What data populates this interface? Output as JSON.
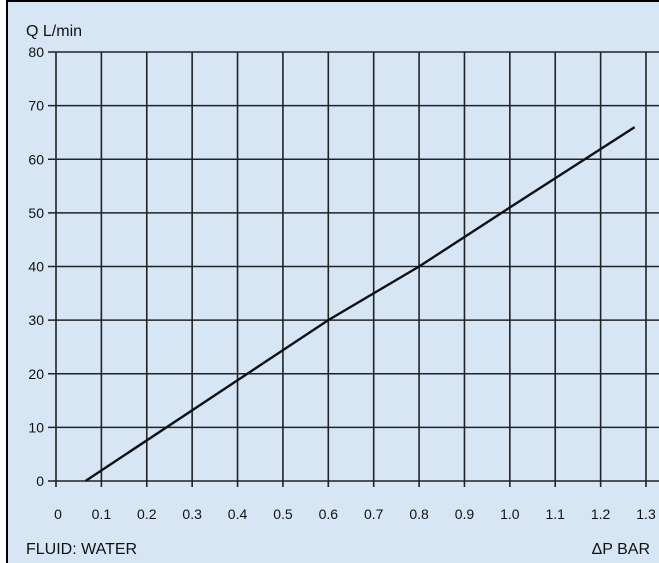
{
  "colors": {
    "background": "#d6e6f5",
    "grid": "#222222",
    "line": "#111111"
  },
  "chart_data": {
    "type": "line",
    "ylabel": "Q L/min",
    "xlabel": "ΔP BAR",
    "footnote": "FLUID: WATER",
    "xlim": [
      0,
      1.3
    ],
    "ylim": [
      0,
      80
    ],
    "grid": true,
    "x_ticks": [
      0,
      0.1,
      0.2,
      0.3,
      0.4,
      0.5,
      0.6,
      0.7,
      0.8,
      0.9,
      1.0,
      1.1,
      1.2,
      1.3
    ],
    "x_tick_labels": [
      "0",
      "0.1",
      "0.2",
      "0.3",
      "0.4",
      "0.5",
      "0.6",
      "0.7",
      "0.8",
      "0.9",
      "1.0",
      "1.1",
      "1.2",
      "1.3"
    ],
    "y_ticks": [
      0,
      10,
      20,
      30,
      40,
      50,
      60,
      70,
      80
    ],
    "y_tick_labels": [
      "0",
      "10",
      "20",
      "30",
      "40",
      "50",
      "60",
      "70",
      "80"
    ],
    "series": [
      {
        "x": [
          0.065,
          0.6,
          0.8,
          1.0,
          1.275
        ],
        "y": [
          0,
          30,
          40,
          51,
          66
        ]
      }
    ]
  }
}
